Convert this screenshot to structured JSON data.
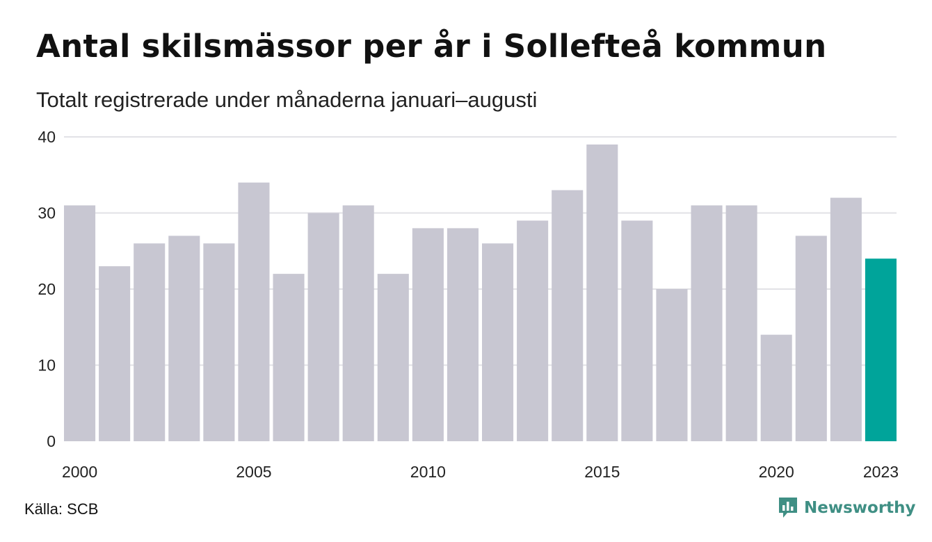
{
  "title": "Antal skilsmässor per år i Sollefteå kommun",
  "subtitle": "Totalt registrerade under månaderna januari–augusti",
  "source": "Källa: SCB",
  "brand": {
    "name": "Newsworthy",
    "icon": "newsworthy-logo-icon",
    "color": "#3f8f84"
  },
  "colors": {
    "bar": "#c8c7d2",
    "highlight": "#00a49a",
    "grid": "#e2e2e6",
    "axis_text": "#222222"
  },
  "chart_data": {
    "type": "bar",
    "title": "Antal skilsmässor per år i Sollefteå kommun",
    "subtitle": "Totalt registrerade under månaderna januari–augusti",
    "categories": [
      2000,
      2001,
      2002,
      2003,
      2004,
      2005,
      2006,
      2007,
      2008,
      2009,
      2010,
      2011,
      2012,
      2013,
      2014,
      2015,
      2016,
      2017,
      2018,
      2019,
      2020,
      2021,
      2022,
      2023
    ],
    "values": [
      31,
      23,
      26,
      27,
      26,
      34,
      22,
      30,
      31,
      22,
      28,
      28,
      26,
      29,
      33,
      39,
      29,
      20,
      31,
      31,
      14,
      27,
      32,
      24
    ],
    "x_tick_labels": [
      "2000",
      "2005",
      "2010",
      "2015",
      "2020",
      "2023"
    ],
    "y_ticks": [
      0,
      10,
      20,
      30,
      40
    ],
    "ylim": [
      0,
      40
    ],
    "grid": true,
    "highlight_category": 2023,
    "xlabel": "",
    "ylabel": ""
  }
}
